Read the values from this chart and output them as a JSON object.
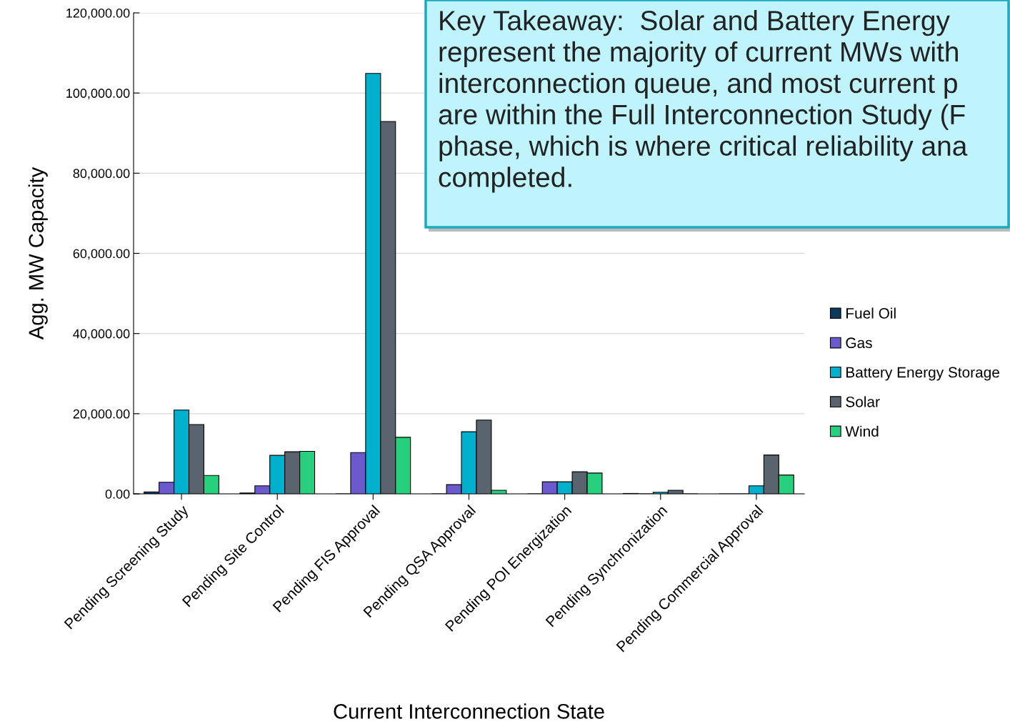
{
  "chart_data": {
    "type": "bar",
    "xlabel": "Current Interconnection State",
    "ylabel": "Agg. MW Capacity",
    "categories": [
      "Pending Screening Study",
      "Pending Site Control",
      "Pending FIS Approval",
      "Pending QSA Approval",
      "Pending POI Energization",
      "Pending Synchronization",
      "Pending Commercial Approval"
    ],
    "series": [
      {
        "name": "Fuel Oil",
        "color": "#0b3a5c",
        "values": [
          500,
          200,
          0,
          0,
          0,
          100,
          0
        ]
      },
      {
        "name": "Gas",
        "color": "#6a5acd",
        "values": [
          2900,
          2000,
          10300,
          2300,
          3000,
          0,
          null
        ]
      },
      {
        "name": "Battery Energy Storage",
        "color": "#00b0cc",
        "values": [
          20900,
          9600,
          104900,
          15500,
          3000,
          400,
          2000
        ]
      },
      {
        "name": "Solar",
        "color": "#59646e",
        "values": [
          17300,
          10500,
          92900,
          18400,
          5500,
          900,
          9700
        ]
      },
      {
        "name": "Wind",
        "color": "#26d07c",
        "values": [
          4600,
          10600,
          14100,
          900,
          5200,
          0,
          4700
        ]
      }
    ],
    "ylim": [
      0,
      120000
    ],
    "yticks": [
      {
        "value": 0,
        "label": "0.00"
      },
      {
        "value": 20000,
        "label": "20,000.00"
      },
      {
        "value": 40000,
        "label": "40,000.00"
      },
      {
        "value": 60000,
        "label": "60,000.00"
      },
      {
        "value": 80000,
        "label": "80,000.00"
      },
      {
        "value": 100000,
        "label": "100,000.00"
      },
      {
        "value": 120000,
        "label": "120,000.00"
      }
    ],
    "grid": "y",
    "legend": "right",
    "annotations": [
      "Key Takeaway:  Solar and Battery Energy\nrepresent the majority of current MWs with\ninterconnection queue, and most current p\nare within the Full Interconnection Study (F\nphase, which is where critical reliability ana\ncompleted."
    ]
  }
}
